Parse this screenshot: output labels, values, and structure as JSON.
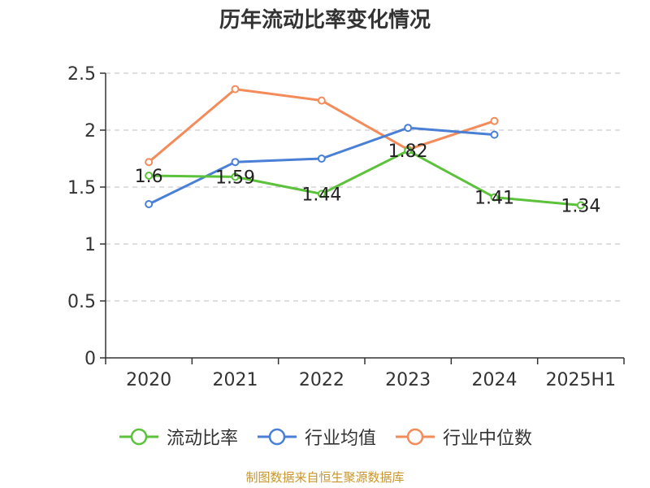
{
  "chart_data": {
    "type": "line",
    "title": "历年流动比率变化情况",
    "categories": [
      "2020",
      "2021",
      "2022",
      "2023",
      "2024",
      "2025H1"
    ],
    "ylim": [
      0,
      2.5
    ],
    "yticks": [
      "0",
      "0.5",
      "1",
      "1.5",
      "2",
      "2.5"
    ],
    "grid": true,
    "legend_position": "bottom",
    "series": [
      {
        "name": "流动比率",
        "color": "#5cc13b",
        "values": [
          1.6,
          1.59,
          1.44,
          1.82,
          1.41,
          1.34
        ],
        "labels": [
          "1.6",
          "1.59",
          "1.44",
          "1.82",
          "1.41",
          "1.34"
        ]
      },
      {
        "name": "行业均值",
        "color": "#4a7fd6",
        "values": [
          1.35,
          1.72,
          1.75,
          2.02,
          1.96,
          null
        ]
      },
      {
        "name": "行业中位数",
        "color": "#f38b5a",
        "values": [
          1.72,
          2.36,
          2.26,
          1.83,
          2.08,
          null
        ]
      }
    ]
  },
  "source_note": "制图数据来自恒生聚源数据库"
}
